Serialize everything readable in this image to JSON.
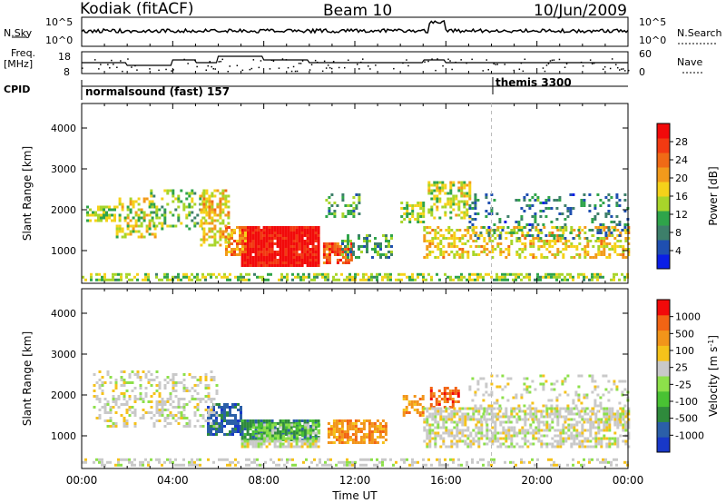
{
  "header": {
    "station": "Kodiak (fitACF)",
    "beam": "Beam 10",
    "date": "10/Jun/2009"
  },
  "strips": {
    "nsky_label": "N.Sky",
    "nsky_ticks": [
      "10^5",
      "10^0"
    ],
    "nsearch_label": "N.Search",
    "nsearch_ticks": [
      "10^5",
      "10^0"
    ],
    "freq_label": "Freq.",
    "freq_unit": "[MHz]",
    "freq_ticks": [
      "18",
      "8"
    ],
    "nave_label": "Nave",
    "nave_ticks": [
      "60",
      "0"
    ],
    "cpid_label": "CPID",
    "cpid_modes": [
      {
        "name": "normalsound (fast) 157",
        "start_hour": 0
      },
      {
        "name": "themis 3300",
        "start_hour": 18
      }
    ]
  },
  "colors": {
    "power": [
      "#0a1ee6",
      "#1f4fb0",
      "#3d7f6a",
      "#2fa44a",
      "#a8d52a",
      "#f5d21a",
      "#f29a1b",
      "#f06a16",
      "#f23a12",
      "#f20a0a"
    ],
    "velocity": [
      "#1838c8",
      "#2b5fa8",
      "#2f8a3c",
      "#49c233",
      "#8de04a",
      "#c9c9c9",
      "#f5c21a",
      "#f2951a",
      "#f26414",
      "#f20a0a"
    ],
    "ground_scatter": "#bdbdbd"
  },
  "chart_data": [
    {
      "type": "heatmap",
      "panel": "power",
      "ylabel": "Slant Range [km]",
      "yticks": [
        "1000",
        "2000",
        "3000",
        "4000"
      ],
      "ylim": [
        200,
        4600
      ],
      "xlim": [
        0,
        24
      ],
      "colorbar_label": "Power [dB]",
      "colorbar_ticks": [
        "4",
        "8",
        "12",
        "16",
        "20",
        "24",
        "28"
      ],
      "colorbar_range": [
        0,
        32
      ],
      "regions": [
        {
          "t0": 0.0,
          "t1": 24.0,
          "r0": 250,
          "r1": 450,
          "value": 14,
          "density": 0.55
        },
        {
          "t0": 7.0,
          "t1": 10.4,
          "r0": 650,
          "r1": 1600,
          "value": 31,
          "density": 0.95
        },
        {
          "t0": 6.3,
          "t1": 7.2,
          "r0": 900,
          "r1": 1600,
          "value": 22,
          "density": 0.7
        },
        {
          "t0": 0.2,
          "t1": 1.5,
          "r0": 1700,
          "r1": 2100,
          "value": 14,
          "density": 0.6
        },
        {
          "t0": 1.5,
          "t1": 3.2,
          "r0": 1300,
          "r1": 2300,
          "value": 16,
          "density": 0.5
        },
        {
          "t0": 3.0,
          "t1": 5.5,
          "r0": 1500,
          "r1": 2500,
          "value": 12,
          "density": 0.35
        },
        {
          "t0": 5.2,
          "t1": 6.4,
          "r0": 1100,
          "r1": 2500,
          "value": 18,
          "density": 0.55
        },
        {
          "t0": 10.6,
          "t1": 11.8,
          "r0": 700,
          "r1": 1200,
          "value": 26,
          "density": 0.7
        },
        {
          "t0": 11.4,
          "t1": 13.6,
          "r0": 850,
          "r1": 1400,
          "value": 10,
          "density": 0.45
        },
        {
          "t0": 10.7,
          "t1": 12.2,
          "r0": 1800,
          "r1": 2400,
          "value": 10,
          "density": 0.35
        },
        {
          "t0": 14.0,
          "t1": 15.0,
          "r0": 1700,
          "r1": 2200,
          "value": 14,
          "density": 0.5
        },
        {
          "t0": 15.2,
          "t1": 17.0,
          "r0": 1800,
          "r1": 2700,
          "value": 16,
          "density": 0.55
        },
        {
          "t0": 15.0,
          "t1": 24.0,
          "r0": 800,
          "r1": 1600,
          "value": 18,
          "density": 0.45
        },
        {
          "t0": 17.0,
          "t1": 24.0,
          "r0": 1300,
          "r1": 2400,
          "value": 8,
          "density": 0.2
        }
      ]
    },
    {
      "type": "heatmap",
      "panel": "velocity",
      "ylabel": "Slant Range [km]",
      "yticks": [
        "1000",
        "2000",
        "3000",
        "4000"
      ],
      "ylim": [
        200,
        4600
      ],
      "xlim": [
        0,
        24
      ],
      "xticks": [
        "00:00",
        "04:00",
        "08:00",
        "12:00",
        "16:00",
        "20:00",
        "00:00"
      ],
      "xlabel": "Time UT",
      "colorbar_label": "Velocity [m s",
      "colorbar_label_exp": "-1",
      "colorbar_label_tail": "]",
      "colorbar_ticks": [
        "1000",
        "500",
        "100",
        "25",
        "-25",
        "-100",
        "-500",
        "-1000"
      ],
      "regions": [
        {
          "t0": 0.0,
          "t1": 24.0,
          "r0": 250,
          "r1": 450,
          "value": 5,
          "density": 0.4
        },
        {
          "t0": 5.5,
          "t1": 7.0,
          "r0": 1000,
          "r1": 1800,
          "value": 1,
          "density": 0.75
        },
        {
          "t0": 7.0,
          "t1": 10.4,
          "r0": 900,
          "r1": 1400,
          "value": 2,
          "density": 0.9
        },
        {
          "t0": 7.5,
          "t1": 10.4,
          "r0": 900,
          "r1": 1300,
          "value": 4,
          "density": 0.5
        },
        {
          "t0": 7.0,
          "t1": 10.4,
          "r0": 700,
          "r1": 900,
          "value": 5,
          "density": 0.85
        },
        {
          "t0": 10.8,
          "t1": 13.4,
          "r0": 800,
          "r1": 1400,
          "value": 7,
          "density": 0.75
        },
        {
          "t0": 14.1,
          "t1": 15.0,
          "r0": 1500,
          "r1": 2000,
          "value": 7,
          "density": 0.55
        },
        {
          "t0": 15.3,
          "t1": 16.5,
          "r0": 1700,
          "r1": 2200,
          "value": 8,
          "density": 0.55
        },
        {
          "t0": 0.5,
          "t1": 6.0,
          "r0": 1200,
          "r1": 2600,
          "value": 5,
          "density": 0.35
        },
        {
          "t0": 15.0,
          "t1": 24.0,
          "r0": 700,
          "r1": 1700,
          "value": 5,
          "density": 0.6
        },
        {
          "t0": 17.0,
          "t1": 24.0,
          "r0": 1300,
          "r1": 2500,
          "value": 5,
          "density": 0.2
        }
      ]
    }
  ]
}
